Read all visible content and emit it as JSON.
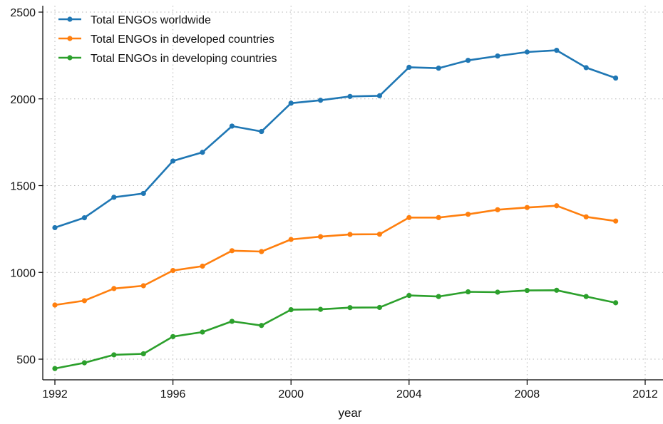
{
  "chart_data": {
    "type": "line",
    "title": "",
    "xlabel": "year",
    "ylabel": "",
    "xlim": [
      1992,
      2012
    ],
    "ylim": [
      400,
      2500
    ],
    "x_ticks": [
      1992,
      1996,
      2000,
      2004,
      2008,
      2012
    ],
    "y_ticks": [
      500,
      1000,
      1500,
      2000,
      2500
    ],
    "grid": true,
    "legend_position": "top-left",
    "x": [
      1992,
      1993,
      1994,
      1995,
      1996,
      1997,
      1998,
      1999,
      2000,
      2001,
      2002,
      2003,
      2004,
      2005,
      2006,
      2007,
      2008,
      2009,
      2010,
      2011
    ],
    "series": [
      {
        "name": "Total ENGOs worldwide",
        "color": "#1f77b4",
        "values": [
          1258,
          1315,
          1433,
          1455,
          1642,
          1692,
          1843,
          1812,
          1975,
          1992,
          2014,
          2018,
          2182,
          2177,
          2222,
          2247,
          2270,
          2280,
          2180,
          2120
        ]
      },
      {
        "name": "Total ENGOs in developed countries",
        "color": "#ff7f0e",
        "values": [
          812,
          837,
          907,
          923,
          1011,
          1036,
          1125,
          1120,
          1190,
          1206,
          1219,
          1220,
          1316,
          1316,
          1335,
          1361,
          1374,
          1384,
          1320,
          1296
        ]
      },
      {
        "name": "Total ENGOs in developing countries",
        "color": "#2ca02c",
        "values": [
          446,
          479,
          525,
          531,
          630,
          656,
          718,
          694,
          785,
          787,
          797,
          798,
          867,
          861,
          888,
          886,
          896,
          897,
          861,
          825
        ]
      }
    ]
  }
}
